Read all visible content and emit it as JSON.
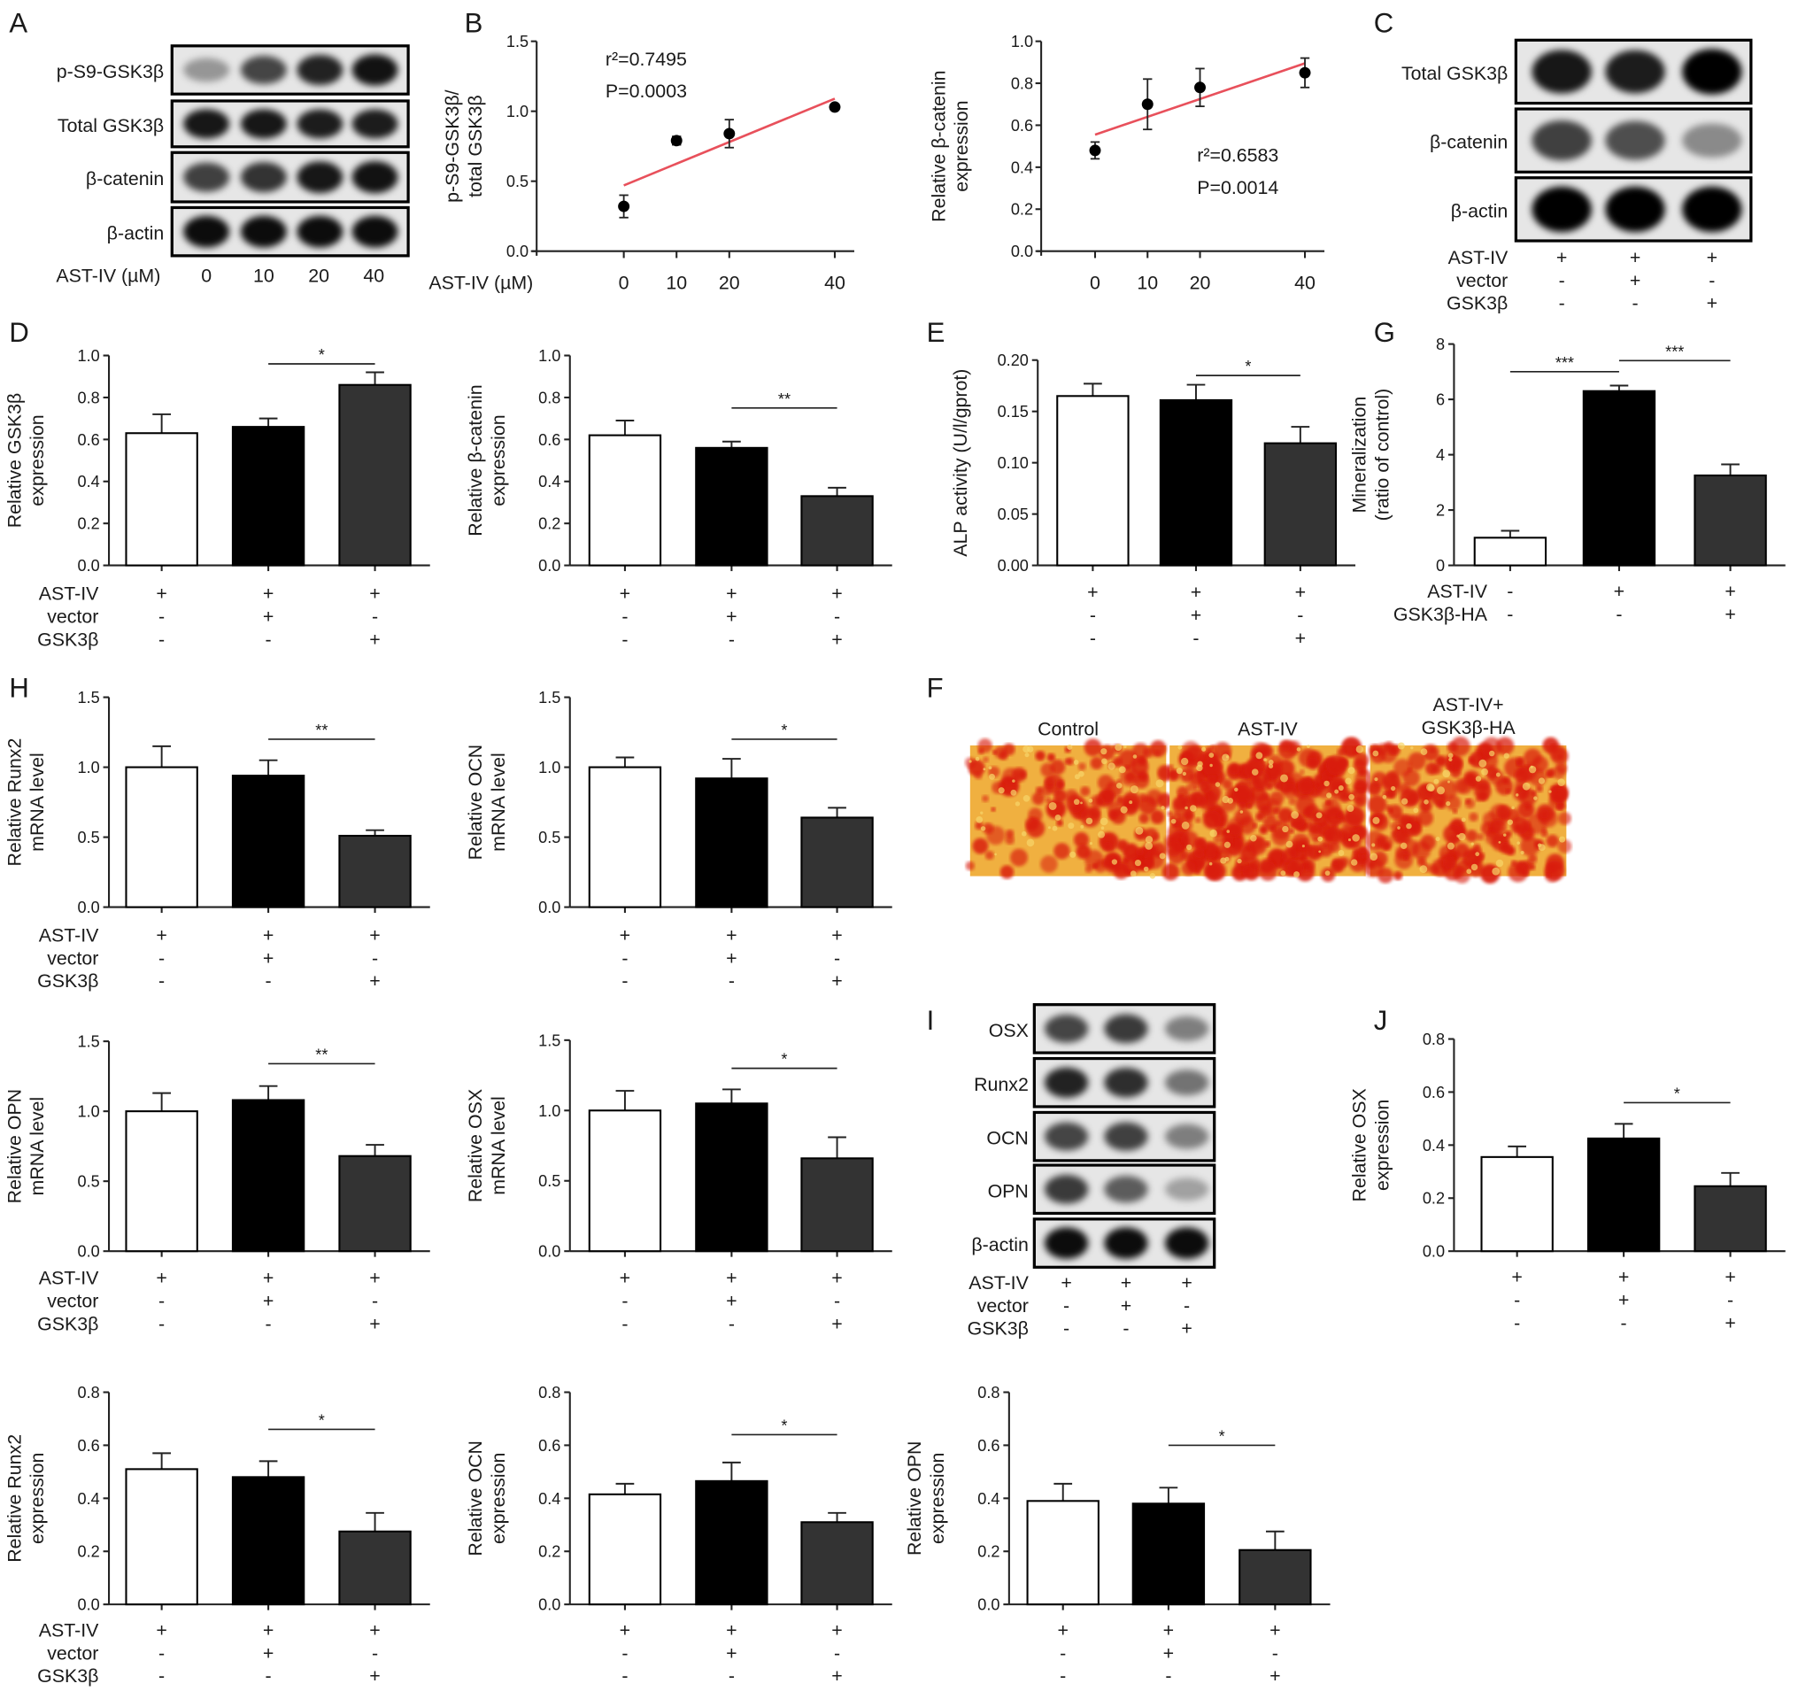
{
  "panel_letters": [
    "A",
    "B",
    "C",
    "D",
    "E",
    "G",
    "H",
    "F",
    "I",
    "J"
  ],
  "blots": [
    {
      "id": "blot-A",
      "rows": [
        {
          "label": "p-S9-GSK3β",
          "intensity": [
            0.35,
            0.7,
            0.85,
            0.92
          ]
        },
        {
          "label": "Total GSK3β",
          "intensity": [
            0.9,
            0.9,
            0.88,
            0.88
          ]
        },
        {
          "label": "β-catenin",
          "intensity": [
            0.72,
            0.78,
            0.9,
            0.92
          ]
        },
        {
          "label": "β-actin",
          "intensity": [
            0.95,
            0.95,
            0.95,
            0.95
          ]
        }
      ],
      "footer_label": "AST-IV (µM)",
      "lanes": [
        "0",
        "10",
        "20",
        "40"
      ]
    },
    {
      "id": "blot-C",
      "rows": [
        {
          "label": "Total GSK3β",
          "intensity": [
            0.9,
            0.88,
            1.0
          ]
        },
        {
          "label": "β-catenin",
          "intensity": [
            0.72,
            0.66,
            0.4
          ]
        },
        {
          "label": "β-actin",
          "intensity": [
            1.0,
            1.0,
            1.0
          ]
        }
      ],
      "conditions": [
        {
          "label": "AST-IV",
          "values": [
            "+",
            "+",
            "+"
          ]
        },
        {
          "label": "vector",
          "values": [
            "-",
            "+",
            "-"
          ]
        },
        {
          "label": "GSK3β",
          "values": [
            "-",
            "-",
            "+"
          ]
        }
      ]
    },
    {
      "id": "blot-I",
      "rows": [
        {
          "label": "OSX",
          "intensity": [
            0.7,
            0.75,
            0.45
          ]
        },
        {
          "label": "Runx2",
          "intensity": [
            0.85,
            0.8,
            0.5
          ]
        },
        {
          "label": "OCN",
          "intensity": [
            0.7,
            0.72,
            0.45
          ]
        },
        {
          "label": "OPN",
          "intensity": [
            0.75,
            0.6,
            0.3
          ]
        },
        {
          "label": "β-actin",
          "intensity": [
            0.95,
            0.95,
            0.95
          ]
        }
      ],
      "conditions": [
        {
          "label": "AST-IV",
          "values": [
            "+",
            "+",
            "+"
          ]
        },
        {
          "label": "vector",
          "values": [
            "-",
            "+",
            "-"
          ]
        },
        {
          "label": "GSK3β",
          "values": [
            "-",
            "-",
            "+"
          ]
        }
      ]
    }
  ],
  "stain_images": [
    {
      "title": [
        "Control"
      ],
      "red_coverage": 0.35
    },
    {
      "title": [
        "AST-IV"
      ],
      "red_coverage": 0.75
    },
    {
      "title": [
        "AST-IV+",
        "GSK3β-HA"
      ],
      "red_coverage": 0.55
    }
  ],
  "colors": {
    "bar_control": "#ffffff",
    "bar_vector": "#000000",
    "bar_gsk3b": "#333333",
    "trend": "#e8505b",
    "stain_bg": "#f0b040",
    "stain_red": "#d91c10"
  },
  "chart_data": [
    {
      "id": "scatter-pS9",
      "type": "scatter",
      "ylabel": [
        "p-S9-GSK3β/",
        "total GSK3β"
      ],
      "xlabel": "AST-IV (µM)",
      "ylim": [
        0,
        1.5
      ],
      "yticks": [
        "0.0",
        "0.5",
        "1.0",
        "1.5"
      ],
      "x": [
        0,
        10,
        20,
        40
      ],
      "xticks": [
        "0",
        "10",
        "20",
        "40"
      ],
      "y": [
        0.32,
        0.79,
        0.84,
        1.03
      ],
      "errors": [
        0.08,
        0.03,
        0.1,
        0.02
      ],
      "fit": {
        "y_at_0": 0.47,
        "y_at_40": 1.09
      },
      "annotations": [
        "r²=0.7495",
        "P=0.0003"
      ]
    },
    {
      "id": "scatter-bcatenin",
      "type": "scatter",
      "ylabel": [
        "Relative β-catenin",
        "expression"
      ],
      "ylim": [
        0,
        1.0
      ],
      "yticks": [
        "0.0",
        "0.2",
        "0.4",
        "0.6",
        "0.8",
        "1.0"
      ],
      "x": [
        0,
        10,
        20,
        40
      ],
      "xticks": [
        "0",
        "10",
        "20",
        "40"
      ],
      "y": [
        0.48,
        0.7,
        0.78,
        0.85
      ],
      "errors": [
        0.04,
        0.12,
        0.09,
        0.07
      ],
      "fit": {
        "y_at_0": 0.555,
        "y_at_40": 0.895
      },
      "annotations": [
        "r²=0.6583",
        "P=0.0014"
      ]
    },
    {
      "id": "bar-gsk3b-protein",
      "type": "bar",
      "ylabel": [
        "Relative GSK3β",
        "expression"
      ],
      "ylim": [
        0,
        1.0
      ],
      "yticks": [
        "0.0",
        "0.2",
        "0.4",
        "0.6",
        "0.8",
        "1.0"
      ],
      "values": [
        0.63,
        0.66,
        0.86
      ],
      "errors": [
        0.09,
        0.04,
        0.06
      ],
      "significance": [
        {
          "from": 1,
          "to": 2,
          "label": "*",
          "y": 0.96
        }
      ],
      "conditions": [
        {
          "label": "AST-IV",
          "values": [
            "+",
            "+",
            "+"
          ]
        },
        {
          "label": "vector",
          "values": [
            "-",
            "+",
            "-"
          ]
        },
        {
          "label": "GSK3β",
          "values": [
            "-",
            "-",
            "+"
          ]
        }
      ]
    },
    {
      "id": "bar-bcatenin-protein",
      "type": "bar",
      "ylabel": [
        "Relative β-catenin",
        "expression"
      ],
      "ylim": [
        0,
        1.0
      ],
      "yticks": [
        "0.0",
        "0.2",
        "0.4",
        "0.6",
        "0.8",
        "1.0"
      ],
      "values": [
        0.62,
        0.56,
        0.33
      ],
      "errors": [
        0.07,
        0.03,
        0.04
      ],
      "significance": [
        {
          "from": 1,
          "to": 2,
          "label": "**",
          "y": 0.75
        }
      ],
      "conditions": [
        {
          "values": [
            "+",
            "+",
            "+"
          ]
        },
        {
          "values": [
            "-",
            "+",
            "-"
          ]
        },
        {
          "values": [
            "-",
            "-",
            "+"
          ]
        }
      ]
    },
    {
      "id": "bar-alp",
      "type": "bar",
      "ylabel": [
        "ALP activity (U/l/gprot)"
      ],
      "ylim": [
        0,
        0.2
      ],
      "yticks": [
        "0.00",
        "0.05",
        "0.10",
        "0.15",
        "0.20"
      ],
      "values": [
        0.165,
        0.161,
        0.119
      ],
      "errors": [
        0.012,
        0.015,
        0.016
      ],
      "significance": [
        {
          "from": 1,
          "to": 2,
          "label": "*",
          "y": 0.185
        }
      ],
      "conditions": [
        {
          "values": [
            "+",
            "+",
            "+"
          ]
        },
        {
          "values": [
            "-",
            "+",
            "-"
          ]
        },
        {
          "values": [
            "-",
            "-",
            "+"
          ]
        }
      ]
    },
    {
      "id": "bar-mineralization",
      "type": "bar",
      "ylabel": [
        "Mineralization",
        "(ratio of control)"
      ],
      "ylim": [
        0,
        8
      ],
      "yticks": [
        "0",
        "2",
        "4",
        "6",
        "8"
      ],
      "values": [
        1.0,
        6.3,
        3.25
      ],
      "errors": [
        0.25,
        0.2,
        0.4
      ],
      "significance": [
        {
          "from": 0,
          "to": 1,
          "label": "***",
          "y": 7.0
        },
        {
          "from": 1,
          "to": 2,
          "label": "***",
          "y": 7.4
        }
      ],
      "conditions": [
        {
          "label": "AST-IV",
          "values": [
            "-",
            "+",
            "+"
          ]
        },
        {
          "label": "GSK3β-HA",
          "values": [
            "-",
            "-",
            "+"
          ]
        }
      ]
    },
    {
      "id": "bar-runx2-mrna",
      "type": "bar",
      "ylabel": [
        "Relative Runx2",
        "mRNA level"
      ],
      "ylim": [
        0,
        1.5
      ],
      "yticks": [
        "0.0",
        "0.5",
        "1.0",
        "1.5"
      ],
      "values": [
        1.0,
        0.94,
        0.51
      ],
      "errors": [
        0.15,
        0.11,
        0.04
      ],
      "significance": [
        {
          "from": 1,
          "to": 2,
          "label": "**",
          "y": 1.2
        }
      ],
      "conditions": [
        {
          "label": "AST-IV",
          "values": [
            "+",
            "+",
            "+"
          ]
        },
        {
          "label": "vector",
          "values": [
            "-",
            "+",
            "-"
          ]
        },
        {
          "label": "GSK3β",
          "values": [
            "-",
            "-",
            "+"
          ]
        }
      ]
    },
    {
      "id": "bar-ocn-mrna",
      "type": "bar",
      "ylabel": [
        "Relative OCN",
        "mRNA level"
      ],
      "ylim": [
        0,
        1.5
      ],
      "yticks": [
        "0.0",
        "0.5",
        "1.0",
        "1.5"
      ],
      "values": [
        1.0,
        0.92,
        0.64
      ],
      "errors": [
        0.07,
        0.14,
        0.07
      ],
      "significance": [
        {
          "from": 1,
          "to": 2,
          "label": "*",
          "y": 1.2
        }
      ],
      "conditions": [
        {
          "values": [
            "+",
            "+",
            "+"
          ]
        },
        {
          "values": [
            "-",
            "+",
            "-"
          ]
        },
        {
          "values": [
            "-",
            "-",
            "+"
          ]
        }
      ]
    },
    {
      "id": "bar-opn-mrna",
      "type": "bar",
      "ylabel": [
        "Relative OPN",
        "mRNA level"
      ],
      "ylim": [
        0,
        1.5
      ],
      "yticks": [
        "0.0",
        "0.5",
        "1.0",
        "1.5"
      ],
      "values": [
        1.0,
        1.08,
        0.68
      ],
      "errors": [
        0.13,
        0.1,
        0.08
      ],
      "significance": [
        {
          "from": 1,
          "to": 2,
          "label": "**",
          "y": 1.34
        }
      ],
      "conditions": [
        {
          "label": "AST-IV",
          "values": [
            "+",
            "+",
            "+"
          ]
        },
        {
          "label": "vector",
          "values": [
            "-",
            "+",
            "-"
          ]
        },
        {
          "label": "GSK3β",
          "values": [
            "-",
            "-",
            "+"
          ]
        }
      ]
    },
    {
      "id": "bar-osx-mrna",
      "type": "bar",
      "ylabel": [
        "Relative OSX",
        "mRNA level"
      ],
      "ylim": [
        0,
        1.5
      ],
      "yticks": [
        "0.0",
        "0.5",
        "1.0",
        "1.5"
      ],
      "values": [
        1.0,
        1.05,
        0.66
      ],
      "errors": [
        0.14,
        0.1,
        0.15
      ],
      "significance": [
        {
          "from": 1,
          "to": 2,
          "label": "*",
          "y": 1.3
        }
      ],
      "conditions": [
        {
          "values": [
            "+",
            "+",
            "+"
          ]
        },
        {
          "values": [
            "-",
            "+",
            "-"
          ]
        },
        {
          "values": [
            "-",
            "-",
            "+"
          ]
        }
      ]
    },
    {
      "id": "bar-osx-protein",
      "type": "bar",
      "ylabel": [
        "Relative OSX",
        "expression"
      ],
      "ylim": [
        0,
        0.8
      ],
      "yticks": [
        "0.0",
        "0.2",
        "0.4",
        "0.6",
        "0.8"
      ],
      "values": [
        0.355,
        0.425,
        0.245
      ],
      "errors": [
        0.04,
        0.055,
        0.05
      ],
      "significance": [
        {
          "from": 1,
          "to": 2,
          "label": "*",
          "y": 0.56
        }
      ],
      "conditions": [
        {
          "values": [
            "+",
            "+",
            "+"
          ]
        },
        {
          "values": [
            "-",
            "+",
            "-"
          ]
        },
        {
          "values": [
            "-",
            "-",
            "+"
          ]
        }
      ]
    },
    {
      "id": "bar-runx2-protein",
      "type": "bar",
      "ylabel": [
        "Relative Runx2",
        "expression"
      ],
      "ylim": [
        0,
        0.8
      ],
      "yticks": [
        "0.0",
        "0.2",
        "0.4",
        "0.6",
        "0.8"
      ],
      "values": [
        0.51,
        0.48,
        0.275
      ],
      "errors": [
        0.06,
        0.06,
        0.07
      ],
      "significance": [
        {
          "from": 1,
          "to": 2,
          "label": "*",
          "y": 0.66
        }
      ],
      "conditions": [
        {
          "label": "AST-IV",
          "values": [
            "+",
            "+",
            "+"
          ]
        },
        {
          "label": "vector",
          "values": [
            "-",
            "+",
            "-"
          ]
        },
        {
          "label": "GSK3β",
          "values": [
            "-",
            "-",
            "+"
          ]
        }
      ]
    },
    {
      "id": "bar-ocn-protein",
      "type": "bar",
      "ylabel": [
        "Relative OCN",
        "expression"
      ],
      "ylim": [
        0,
        0.8
      ],
      "yticks": [
        "0.0",
        "0.2",
        "0.4",
        "0.6",
        "0.8"
      ],
      "values": [
        0.415,
        0.465,
        0.31
      ],
      "errors": [
        0.04,
        0.07,
        0.035
      ],
      "significance": [
        {
          "from": 1,
          "to": 2,
          "label": "*",
          "y": 0.64
        }
      ],
      "conditions": [
        {
          "values": [
            "+",
            "+",
            "+"
          ]
        },
        {
          "values": [
            "-",
            "+",
            "-"
          ]
        },
        {
          "values": [
            "-",
            "-",
            "+"
          ]
        }
      ]
    },
    {
      "id": "bar-opn-protein",
      "type": "bar",
      "ylabel": [
        "Relative OPN",
        "expression"
      ],
      "ylim": [
        0,
        0.8
      ],
      "yticks": [
        "0.0",
        "0.2",
        "0.4",
        "0.6",
        "0.8"
      ],
      "values": [
        0.39,
        0.38,
        0.205
      ],
      "errors": [
        0.065,
        0.06,
        0.07
      ],
      "significance": [
        {
          "from": 1,
          "to": 2,
          "label": "*",
          "y": 0.6
        }
      ],
      "conditions": [
        {
          "values": [
            "+",
            "+",
            "+"
          ]
        },
        {
          "values": [
            "-",
            "+",
            "-"
          ]
        },
        {
          "values": [
            "-",
            "-",
            "+"
          ]
        }
      ]
    }
  ]
}
